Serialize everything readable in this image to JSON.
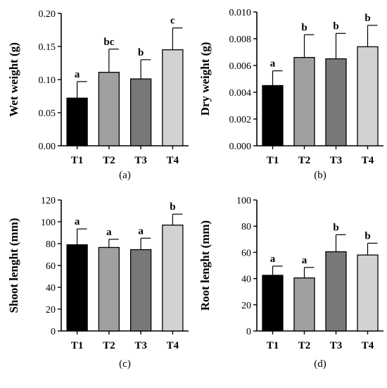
{
  "chart_data": [
    {
      "type": "bar",
      "panel": "(a)",
      "ylabel": "Wet weight (g)",
      "categories": [
        "T1",
        "T2",
        "T3",
        "T4"
      ],
      "yticks": [
        "0.00",
        "0.05",
        "0.10",
        "0.15",
        "0.20"
      ],
      "ylim": [
        0,
        0.2
      ],
      "values": [
        0.072,
        0.111,
        0.101,
        0.145
      ],
      "errors": [
        0.025,
        0.035,
        0.029,
        0.033
      ],
      "significance": [
        "a",
        "bc",
        "b",
        "c"
      ],
      "colors": [
        "#000000",
        "#a0a0a0",
        "#787878",
        "#d2d2d2"
      ]
    },
    {
      "type": "bar",
      "panel": "(b)",
      "ylabel": "Dry weight (g)",
      "categories": [
        "T1",
        "T2",
        "T3",
        "T4"
      ],
      "yticks": [
        "0.000",
        "0.002",
        "0.004",
        "0.006",
        "0.008",
        "0.010"
      ],
      "ylim": [
        0,
        0.01
      ],
      "values": [
        0.0045,
        0.0066,
        0.0065,
        0.0074
      ],
      "errors": [
        0.0011,
        0.0017,
        0.0019,
        0.0016
      ],
      "significance": [
        "a",
        "b",
        "b",
        "b"
      ],
      "colors": [
        "#000000",
        "#a0a0a0",
        "#787878",
        "#d2d2d2"
      ]
    },
    {
      "type": "bar",
      "panel": "(c)",
      "ylabel": "Shoot lenght (mm)",
      "categories": [
        "T1",
        "T2",
        "T3",
        "T4"
      ],
      "yticks": [
        "0",
        "20",
        "40",
        "60",
        "80",
        "100",
        "120"
      ],
      "ylim": [
        0,
        120
      ],
      "values": [
        79,
        76.5,
        74.5,
        97
      ],
      "errors": [
        14.5,
        7.5,
        10.5,
        10
      ],
      "significance": [
        "a",
        "a",
        "a",
        "b"
      ],
      "colors": [
        "#000000",
        "#a0a0a0",
        "#787878",
        "#d2d2d2"
      ]
    },
    {
      "type": "bar",
      "panel": "(d)",
      "ylabel": "Root lenght (mm)",
      "categories": [
        "T1",
        "T2",
        "T3",
        "T4"
      ],
      "yticks": [
        "0",
        "20",
        "40",
        "60",
        "80",
        "100"
      ],
      "ylim": [
        0,
        100
      ],
      "values": [
        42.5,
        40.5,
        60.5,
        58
      ],
      "errors": [
        7,
        8,
        13,
        9
      ],
      "significance": [
        "a",
        "a",
        "b",
        "b"
      ],
      "colors": [
        "#000000",
        "#a0a0a0",
        "#787878",
        "#d2d2d2"
      ]
    }
  ]
}
